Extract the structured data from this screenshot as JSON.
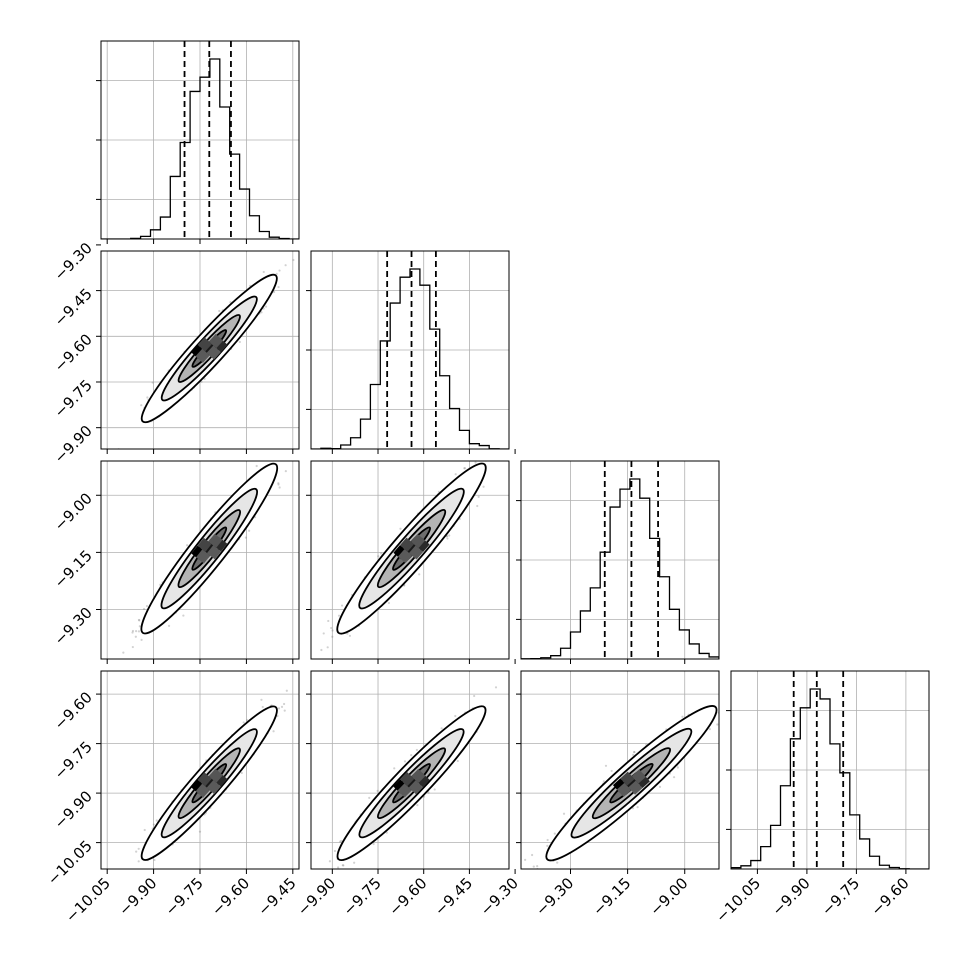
{
  "chart_data": {
    "type": "corner",
    "n_params": 4,
    "params": [
      {
        "median": -9.72,
        "q16": -9.8,
        "q84": -9.65,
        "sigma": 0.07,
        "range": [
          -10.07,
          -9.43
        ],
        "ticks": [
          -10.05,
          -9.9,
          -9.75,
          -9.6,
          -9.45
        ],
        "tick_labels": [
          "−10.05",
          "−9.90",
          "−9.75",
          "−9.60",
          "−9.45"
        ],
        "hist_ylim": [
          0,
          1.1
        ]
      },
      {
        "median": -9.64,
        "q16": -9.72,
        "q84": -9.56,
        "sigma": 0.078,
        "range": [
          -9.97,
          -9.32
        ],
        "ticks": [
          -9.9,
          -9.75,
          -9.6,
          -9.45,
          -9.3
        ],
        "tick_labels": [
          "−9.90",
          "−9.75",
          "−9.60",
          "−9.45",
          "−9.30"
        ],
        "hist_ylim": [
          0,
          1.1
        ]
      },
      {
        "median": -9.14,
        "q16": -9.21,
        "q84": -9.07,
        "sigma": 0.072,
        "range": [
          -9.43,
          -8.91
        ],
        "ticks": [
          -9.3,
          -9.15,
          -9.0
        ],
        "tick_labels": [
          "−9.30",
          "−9.15",
          "−9.00"
        ],
        "hist_ylim": [
          0,
          1.1
        ]
      },
      {
        "median": -9.87,
        "q16": -9.94,
        "q84": -9.79,
        "sigma": 0.075,
        "range": [
          -10.13,
          -9.53
        ],
        "ticks": [
          -10.05,
          -9.9,
          -9.75,
          -9.6
        ],
        "tick_labels": [
          "−10.05",
          "−9.90",
          "−9.75",
          "−9.60"
        ],
        "hist_ylim": [
          0,
          1.1
        ]
      }
    ],
    "correlation": 0.95,
    "histogram_bins": 20,
    "quantile_lines": [
      "q16",
      "median",
      "q84"
    ],
    "grid": true,
    "colors": {
      "line": "#000000",
      "grid": "#b0b0b0",
      "points": "#7f7f7f",
      "background": "#ffffff"
    }
  }
}
